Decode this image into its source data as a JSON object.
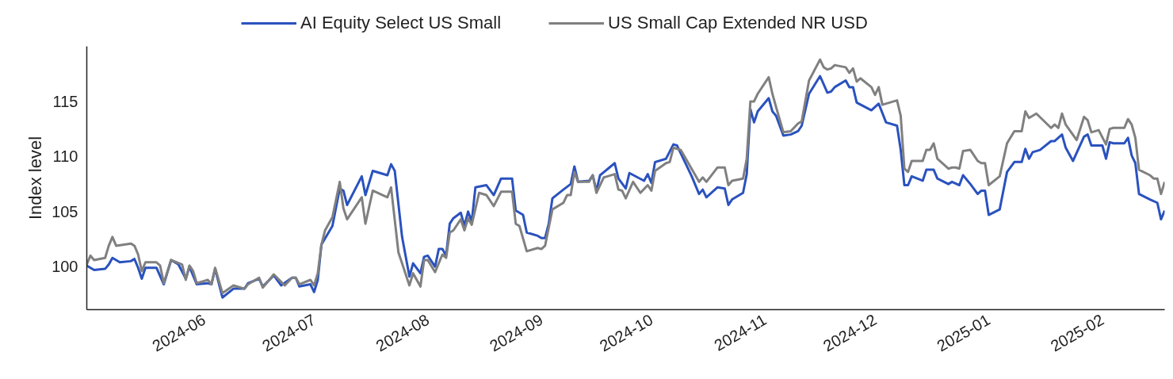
{
  "chart_data": {
    "type": "line",
    "ylabel": "Index level",
    "xlim": [
      "2024-04-30",
      "2025-02-18"
    ],
    "ylim": [
      96.1,
      120.0
    ],
    "xticks": [
      "2024-06",
      "2024-07",
      "2024-08",
      "2024-09",
      "2024-10",
      "2024-11",
      "2024-12",
      "2025-01",
      "2025-02"
    ],
    "yticks": [
      100,
      105,
      110,
      115
    ],
    "grid": false,
    "legend": "top",
    "marker": "none",
    "line_style": "solid",
    "series": [
      {
        "name": "AI Equity Select US Small",
        "color": "#2a52be",
        "x": [
          "2024-04-30",
          "2024-05-02",
          "2024-05-05",
          "2024-05-06",
          "2024-05-07",
          "2024-05-09",
          "2024-05-12",
          "2024-05-13",
          "2024-05-14",
          "2024-05-15",
          "2024-05-16",
          "2024-05-19",
          "2024-05-21",
          "2024-05-23",
          "2024-05-25",
          "2024-05-27",
          "2024-05-28",
          "2024-05-30",
          "2024-06-02",
          "2024-06-03",
          "2024-06-04",
          "2024-06-06",
          "2024-06-09",
          "2024-06-12",
          "2024-06-13",
          "2024-06-16",
          "2024-06-17",
          "2024-06-20",
          "2024-06-22",
          "2024-06-25",
          "2024-06-26",
          "2024-06-27",
          "2024-06-30",
          "2024-07-01",
          "2024-07-02",
          "2024-07-03",
          "2024-07-06",
          "2024-07-08",
          "2024-07-09",
          "2024-07-10",
          "2024-07-14",
          "2024-07-15",
          "2024-07-17",
          "2024-07-21",
          "2024-07-22",
          "2024-07-23",
          "2024-07-25",
          "2024-07-27",
          "2024-07-28",
          "2024-07-30",
          "2024-07-31",
          "2024-08-01",
          "2024-08-03",
          "2024-08-04",
          "2024-08-05",
          "2024-08-06",
          "2024-08-07",
          "2024-08-08",
          "2024-08-10",
          "2024-08-11",
          "2024-08-12",
          "2024-08-13",
          "2024-08-14",
          "2024-08-17",
          "2024-08-19",
          "2024-08-21",
          "2024-08-24",
          "2024-08-25",
          "2024-08-27",
          "2024-08-28",
          "2024-08-31",
          "2024-09-01",
          "2024-09-02",
          "2024-09-03",
          "2024-09-04",
          "2024-09-07",
          "2024-09-09",
          "2024-09-10",
          "2024-09-11",
          "2024-09-14",
          "2024-09-15",
          "2024-09-16",
          "2024-09-17",
          "2024-09-21",
          "2024-09-22",
          "2024-09-24",
          "2024-09-25",
          "2024-09-29",
          "2024-09-30",
          "2024-10-01",
          "2024-10-02",
          "2024-10-05",
          "2024-10-07",
          "2024-10-08",
          "2024-10-12",
          "2024-10-14",
          "2024-10-15",
          "2024-10-16",
          "2024-10-19",
          "2024-10-21",
          "2024-10-22",
          "2024-10-23",
          "2024-10-26",
          "2024-10-27",
          "2024-10-28",
          "2024-10-29",
          "2024-10-30",
          "2024-11-02",
          "2024-11-03",
          "2024-11-04",
          "2024-11-06",
          "2024-11-08",
          "2024-11-10",
          "2024-11-11",
          "2024-11-13",
          "2024-11-16",
          "2024-11-18",
          "2024-11-19",
          "2024-11-20",
          "2024-11-23",
          "2024-11-24",
          "2024-11-25",
          "2024-11-26",
          "2024-11-30",
          "2024-12-02",
          "2024-12-04",
          "2024-12-07",
          "2024-12-08",
          "2024-12-09",
          "2024-12-10",
          "2024-12-11",
          "2024-12-14",
          "2024-12-15",
          "2024-12-17",
          "2024-12-18",
          "2024-12-21",
          "2024-12-22",
          "2024-12-24",
          "2024-12-25",
          "2024-12-27",
          "2024-12-29",
          "2024-12-30",
          "2024-12-31",
          "2025-01-01",
          "2025-01-04",
          "2025-01-06",
          "2025-01-08",
          "2025-01-10",
          "2025-01-11",
          "2025-01-12",
          "2025-01-13",
          "2025-01-15",
          "2025-01-18",
          "2025-01-19",
          "2025-01-21",
          "2025-01-22",
          "2025-01-24",
          "2025-01-27",
          "2025-01-28",
          "2025-01-29",
          "2025-02-01",
          "2025-02-02",
          "2025-02-03",
          "2025-02-04",
          "2025-02-07",
          "2025-02-08",
          "2025-02-09",
          "2025-02-10",
          "2025-02-11",
          "2025-02-14",
          "2025-02-16",
          "2025-02-17",
          "2025-02-18"
        ],
        "values": [
          100.1,
          99.7,
          99.8,
          100.2,
          100.8,
          100.4,
          100.5,
          100.7,
          99.9,
          98.9,
          99.9,
          99.9,
          98.4,
          100.6,
          100.2,
          98.9,
          100.0,
          98.4,
          98.5,
          98.4,
          99.8,
          97.2,
          98.0,
          98.0,
          98.5,
          98.9,
          98.2,
          99.2,
          98.3,
          99.0,
          99.0,
          98.2,
          98.4,
          97.7,
          98.8,
          102.0,
          103.7,
          107.1,
          106.9,
          105.6,
          108.2,
          106.5,
          108.7,
          108.3,
          109.3,
          108.7,
          102.7,
          99.1,
          100.3,
          99.4,
          100.9,
          101.0,
          100.0,
          101.6,
          101.6,
          101.0,
          103.9,
          104.4,
          104.9,
          103.7,
          105.0,
          104.1,
          107.2,
          107.4,
          106.5,
          108.0,
          108.0,
          105.1,
          104.7,
          103.1,
          102.8,
          102.6,
          102.6,
          103.9,
          106.2,
          107.0,
          107.5,
          109.1,
          107.7,
          107.8,
          108.3,
          106.9,
          108.3,
          109.4,
          108.0,
          107.1,
          108.5,
          107.8,
          108.4,
          107.6,
          109.5,
          109.8,
          111.1,
          111.0,
          108.2,
          106.6,
          107.0,
          106.3,
          107.2,
          107.1,
          105.6,
          106.1,
          106.7,
          108.4,
          114.3,
          113.1,
          114.1,
          115.3,
          114.1,
          113.7,
          111.9,
          112.0,
          112.3,
          112.8,
          115.7,
          117.3,
          115.8,
          115.9,
          116.3,
          116.9,
          116.3,
          116.3,
          114.9,
          114.2,
          114.8,
          113.1,
          112.8,
          110.6,
          107.4,
          107.4,
          108.2,
          107.8,
          108.8,
          108.8,
          108.0,
          107.5,
          107.7,
          107.4,
          108.3,
          107.5,
          106.6,
          106.9,
          106.9,
          104.7,
          105.2,
          108.6,
          109.5,
          109.5,
          110.7,
          109.8,
          110.4,
          110.6,
          111.4,
          111.4,
          112.0,
          110.8,
          109.6,
          111.8,
          112.0,
          111.0,
          111.0,
          109.8,
          111.3,
          111.2,
          111.2,
          111.7,
          110.1,
          109.4,
          106.6,
          106.1,
          105.8,
          104.3,
          105.1
        ]
      },
      {
        "name": "US Small Cap Extended NR USD",
        "color": "#808080",
        "x": [
          "2024-04-30",
          "2024-05-01",
          "2024-05-02",
          "2024-05-05",
          "2024-05-06",
          "2024-05-07",
          "2024-05-08",
          "2024-05-12",
          "2024-05-13",
          "2024-05-14",
          "2024-05-15",
          "2024-05-16",
          "2024-05-19",
          "2024-05-20",
          "2024-05-21",
          "2024-05-23",
          "2024-05-26",
          "2024-05-27",
          "2024-05-28",
          "2024-05-29",
          "2024-05-30",
          "2024-06-02",
          "2024-06-03",
          "2024-06-04",
          "2024-06-06",
          "2024-06-09",
          "2024-06-12",
          "2024-06-13",
          "2024-06-16",
          "2024-06-17",
          "2024-06-20",
          "2024-06-23",
          "2024-06-25",
          "2024-06-26",
          "2024-06-27",
          "2024-06-30",
          "2024-07-01",
          "2024-07-02",
          "2024-07-03",
          "2024-07-04",
          "2024-07-06",
          "2024-07-08",
          "2024-07-09",
          "2024-07-10",
          "2024-07-14",
          "2024-07-15",
          "2024-07-17",
          "2024-07-21",
          "2024-07-22",
          "2024-07-24",
          "2024-07-27",
          "2024-07-28",
          "2024-07-30",
          "2024-07-31",
          "2024-08-01",
          "2024-08-03",
          "2024-08-05",
          "2024-08-06",
          "2024-08-07",
          "2024-08-08",
          "2024-08-10",
          "2024-08-11",
          "2024-08-12",
          "2024-08-13",
          "2024-08-15",
          "2024-08-17",
          "2024-08-19",
          "2024-08-21",
          "2024-08-24",
          "2024-08-25",
          "2024-08-26",
          "2024-08-28",
          "2024-08-31",
          "2024-09-01",
          "2024-09-02",
          "2024-09-04",
          "2024-09-07",
          "2024-09-08",
          "2024-09-09",
          "2024-09-10",
          "2024-09-11",
          "2024-09-14",
          "2024-09-15",
          "2024-09-16",
          "2024-09-18",
          "2024-09-21",
          "2024-09-22",
          "2024-09-23",
          "2024-09-24",
          "2024-09-26",
          "2024-09-28",
          "2024-09-30",
          "2024-10-01",
          "2024-10-02",
          "2024-10-05",
          "2024-10-06",
          "2024-10-07",
          "2024-10-09",
          "2024-10-14",
          "2024-10-15",
          "2024-10-16",
          "2024-10-19",
          "2024-10-21",
          "2024-10-22",
          "2024-10-23",
          "2024-10-26",
          "2024-10-27",
          "2024-10-28",
          "2024-10-29",
          "2024-10-30",
          "2024-11-02",
          "2024-11-03",
          "2024-11-04",
          "2024-11-06",
          "2024-11-08",
          "2024-11-10",
          "2024-11-11",
          "2024-11-13",
          "2024-11-16",
          "2024-11-17",
          "2024-11-18",
          "2024-11-19",
          "2024-11-20",
          "2024-11-23",
          "2024-11-24",
          "2024-11-25",
          "2024-11-26",
          "2024-11-27",
          "2024-11-30",
          "2024-12-01",
          "2024-12-02",
          "2024-12-03",
          "2024-12-07",
          "2024-12-08",
          "2024-12-09",
          "2024-12-10",
          "2024-12-11",
          "2024-12-14",
          "2024-12-15",
          "2024-12-16",
          "2024-12-17",
          "2024-12-18",
          "2024-12-21",
          "2024-12-22",
          "2024-12-23",
          "2024-12-24",
          "2024-12-25",
          "2024-12-27",
          "2024-12-29",
          "2024-12-30",
          "2024-12-31",
          "2025-01-01",
          "2025-01-04",
          "2025-01-06",
          "2025-01-08",
          "2025-01-10",
          "2025-01-11",
          "2025-01-12",
          "2025-01-14",
          "2025-01-18",
          "2025-01-19",
          "2025-01-20",
          "2025-01-21",
          "2025-01-22",
          "2025-01-25",
          "2025-01-27",
          "2025-01-28",
          "2025-01-29",
          "2025-01-31",
          "2025-02-02",
          "2025-02-03",
          "2025-02-04",
          "2025-02-07",
          "2025-02-08",
          "2025-02-09",
          "2025-02-10",
          "2025-02-11",
          "2025-02-14",
          "2025-02-15",
          "2025-02-16",
          "2025-02-17",
          "2025-02-18"
        ],
        "values": [
          100.2,
          101.0,
          100.6,
          100.8,
          101.9,
          102.7,
          101.9,
          102.1,
          101.9,
          101.1,
          99.6,
          100.4,
          100.4,
          100.1,
          98.5,
          100.6,
          100.2,
          98.8,
          100.1,
          99.6,
          98.5,
          98.8,
          98.4,
          99.9,
          97.6,
          98.3,
          98.0,
          98.4,
          99.0,
          98.1,
          99.3,
          98.3,
          99.0,
          99.0,
          98.4,
          98.8,
          98.3,
          99.4,
          102.0,
          103.3,
          104.5,
          107.7,
          105.3,
          104.3,
          106.3,
          103.9,
          106.9,
          106.3,
          107.2,
          101.3,
          98.3,
          99.4,
          98.2,
          100.6,
          100.6,
          99.5,
          101.1,
          100.8,
          103.1,
          103.3,
          104.3,
          103.3,
          104.4,
          103.8,
          106.7,
          106.5,
          105.5,
          106.8,
          106.8,
          103.9,
          103.7,
          101.4,
          101.7,
          101.6,
          101.9,
          105.2,
          105.8,
          106.5,
          106.5,
          108.6,
          107.7,
          107.7,
          108.3,
          106.7,
          108.1,
          108.4,
          107.0,
          106.9,
          106.2,
          107.7,
          106.7,
          107.4,
          106.9,
          108.7,
          109.4,
          109.5,
          110.8,
          110.6,
          107.7,
          108.1,
          107.7,
          109.0,
          109.0,
          107.4,
          107.8,
          108.0,
          109.8,
          115.0,
          115.0,
          115.7,
          117.2,
          115.7,
          114.5,
          112.2,
          112.3,
          113.0,
          113.2,
          116.9,
          118.8,
          118.1,
          117.9,
          118.0,
          118.3,
          118.1,
          117.6,
          118.0,
          116.8,
          117.1,
          116.3,
          115.6,
          116.3,
          114.7,
          115.1,
          113.7,
          108.9,
          108.6,
          109.6,
          109.6,
          110.6,
          110.6,
          111.2,
          109.8,
          108.9,
          109.0,
          109.0,
          108.9,
          110.5,
          110.6,
          109.6,
          109.4,
          109.4,
          107.4,
          108.2,
          111.2,
          112.3,
          112.3,
          114.1,
          113.5,
          113.9,
          112.6,
          112.9,
          112.6,
          113.9,
          112.9,
          111.5,
          113.6,
          113.3,
          112.2,
          112.4,
          111.1,
          112.5,
          112.6,
          112.6,
          113.4,
          112.9,
          111.7,
          108.8,
          108.3,
          108.0,
          108.0,
          106.6,
          107.7
        ]
      }
    ]
  }
}
